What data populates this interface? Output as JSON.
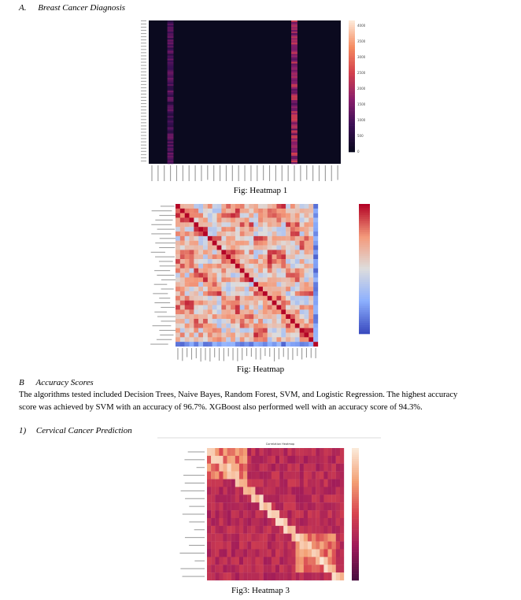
{
  "sections": {
    "a": {
      "number": "A.",
      "title": "Breast Cancer Diagnosis"
    },
    "b": {
      "number": "B",
      "title": "Accuracy Scores"
    },
    "c": {
      "number": "1)",
      "title": "Cervical Cancer Prediction"
    }
  },
  "captions": {
    "fig1": "Fig: Heatmap 1",
    "fig2": "Fig: Heatmap",
    "fig3": "Fig3: Heatmap 3"
  },
  "paragraph": {
    "line1": "The algorithms tested included Decision Trees,  Naive Bayes, Random Forest, SVM, and Logistic Regression. The highest accuracy",
    "line2": "score was achieved by SVM with an accuracy of 96.7%. XGBoost also performed well with an accuracy score of 94.3%."
  },
  "figures": {
    "heatmap1": {
      "colorbar_ticks": [
        "4000",
        "3500",
        "3000",
        "2500",
        "2000",
        "1500",
        "1000",
        "500",
        "0"
      ],
      "colormap": [
        "#0b0a1f",
        "#3b0f55",
        "#8a1e6b",
        "#d2404d",
        "#f58a5f",
        "#fde8d6"
      ]
    },
    "heatmap2": {
      "colormap": [
        "#3b4cc0",
        "#8db0fe",
        "#dddddd",
        "#f49a7b",
        "#b40426"
      ]
    },
    "heatmap3": {
      "title": "Correlation Heatmap",
      "colormap": [
        "#4a0f3f",
        "#9e1a5a",
        "#d7434f",
        "#f3a074",
        "#fbe9d8"
      ]
    }
  }
}
